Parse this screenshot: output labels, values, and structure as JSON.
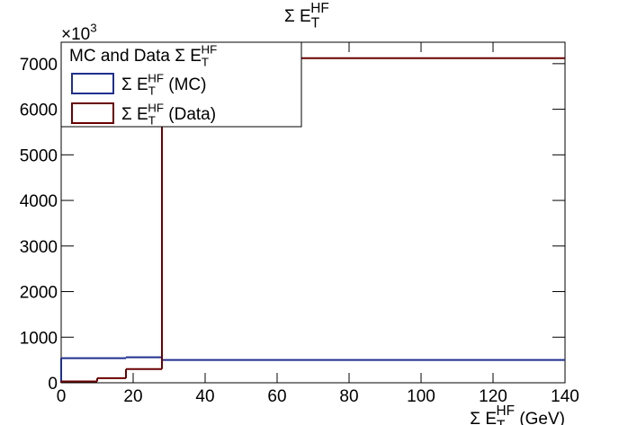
{
  "chart_data": {
    "type": "histogram",
    "title": {
      "base": "Σ E",
      "sub": "T",
      "sup": "HF"
    },
    "x_label": {
      "base": "Σ E",
      "sub": "T",
      "sup": "HF",
      "suffix": " (GeV)"
    },
    "y_multiplier": {
      "base": "×10",
      "sup": "3"
    },
    "legend_title": {
      "base": "MC and Data Σ E",
      "sub": "T",
      "sup": "HF"
    },
    "bins": [
      0,
      10,
      18,
      28,
      140
    ],
    "series": [
      {
        "name": {
          "base": "Σ E",
          "sub": "T",
          "sup": "HF",
          "suffix": " (MC)"
        },
        "color": "#1f2f8f",
        "values": [
          540,
          540,
          560,
          500
        ]
      },
      {
        "name": {
          "base": "Σ E",
          "sub": "T",
          "sup": "HF",
          "suffix": " (Data)"
        },
        "color": "#6b0000",
        "values": [
          30,
          100,
          300,
          7120
        ]
      }
    ],
    "xlim": [
      0,
      140
    ],
    "ylim": [
      0,
      7470
    ],
    "xticks": [
      0,
      20,
      40,
      60,
      80,
      100,
      120,
      140
    ],
    "yticks": [
      0,
      1000,
      2000,
      3000,
      4000,
      5000,
      6000,
      7000
    ],
    "legend": "top-left"
  }
}
